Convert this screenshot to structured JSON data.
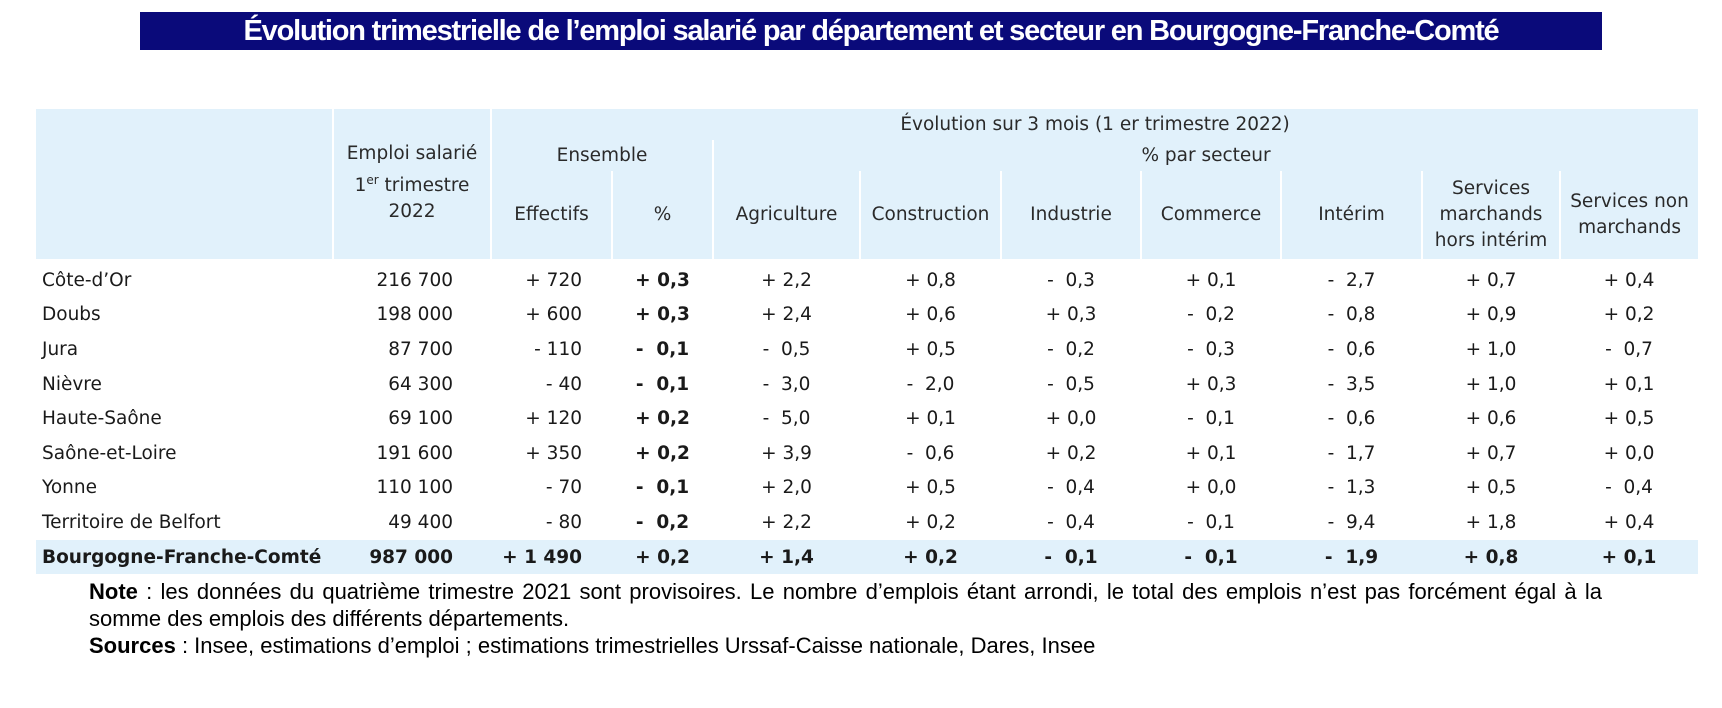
{
  "title": "Évolution trimestrielle de l’emploi salarié par département et secteur en Bourgogne-Franche-Comté",
  "table": {
    "header": {
      "evolution": "Évolution sur 3 mois (1 er trimestre 2022)",
      "emploi_line1": "Emploi salarié",
      "emploi_sup": "er",
      "emploi_line2_a": "1",
      "emploi_line2_b": " trimestre",
      "emploi_line3": "2022",
      "ensemble": "Ensemble",
      "par_secteur": "% par secteur",
      "effectifs": "Effectifs",
      "pct": "%",
      "agriculture": "Agriculture",
      "construction": "Construction",
      "industrie": "Industrie",
      "commerce": "Commerce",
      "interim": "Intérim",
      "services_marchands": "Services marchands hors intérim",
      "services_non_marchands": "Services non marchands"
    },
    "rows": [
      {
        "name": "Côte-d’Or",
        "emploi": "216 700",
        "effectifs": "+ 720",
        "pct": "+ 0,3",
        "agriculture": "+ 2,2",
        "construction": "+ 0,8",
        "industrie": "-  0,3",
        "commerce": "+ 0,1",
        "interim": "-  2,7",
        "services_marchands": "+ 0,7",
        "services_non_marchands": "+ 0,4"
      },
      {
        "name": "Doubs",
        "emploi": "198 000",
        "effectifs": "+ 600",
        "pct": "+ 0,3",
        "agriculture": "+ 2,4",
        "construction": "+ 0,6",
        "industrie": "+ 0,3",
        "commerce": "-  0,2",
        "interim": "-  0,8",
        "services_marchands": "+ 0,9",
        "services_non_marchands": "+ 0,2"
      },
      {
        "name": "Jura",
        "emploi": "87 700",
        "effectifs": "- 110",
        "pct": "-  0,1",
        "agriculture": "-  0,5",
        "construction": "+ 0,5",
        "industrie": "-  0,2",
        "commerce": "-  0,3",
        "interim": "-  0,6",
        "services_marchands": "+ 1,0",
        "services_non_marchands": "-  0,7"
      },
      {
        "name": "Nièvre",
        "emploi": "64 300",
        "effectifs": "- 40",
        "pct": "-  0,1",
        "agriculture": "-  3,0",
        "construction": "-  2,0",
        "industrie": "-  0,5",
        "commerce": "+ 0,3",
        "interim": "-  3,5",
        "services_marchands": "+ 1,0",
        "services_non_marchands": "+ 0,1"
      },
      {
        "name": "Haute-Saône",
        "emploi": "69 100",
        "effectifs": "+ 120",
        "pct": "+ 0,2",
        "agriculture": "-  5,0",
        "construction": "+ 0,1",
        "industrie": "+ 0,0",
        "commerce": "-  0,1",
        "interim": "-  0,6",
        "services_marchands": "+ 0,6",
        "services_non_marchands": "+ 0,5"
      },
      {
        "name": "Saône-et-Loire",
        "emploi": "191 600",
        "effectifs": "+ 350",
        "pct": "+ 0,2",
        "agriculture": "+ 3,9",
        "construction": "-  0,6",
        "industrie": "+ 0,2",
        "commerce": "+ 0,1",
        "interim": "-  1,7",
        "services_marchands": "+ 0,7",
        "services_non_marchands": "+ 0,0"
      },
      {
        "name": "Yonne",
        "emploi": "110 100",
        "effectifs": "- 70",
        "pct": "-  0,1",
        "agriculture": "+ 2,0",
        "construction": "+ 0,5",
        "industrie": "-  0,4",
        "commerce": "+ 0,0",
        "interim": "-  1,3",
        "services_marchands": "+ 0,5",
        "services_non_marchands": "-  0,4"
      },
      {
        "name": "Territoire de Belfort",
        "emploi": "49 400",
        "effectifs": "- 80",
        "pct": "-  0,2",
        "agriculture": "+ 2,2",
        "construction": "+ 0,2",
        "industrie": "-  0,4",
        "commerce": "-  0,1",
        "interim": "-  9,4",
        "services_marchands": "+ 1,8",
        "services_non_marchands": "+ 0,4"
      }
    ],
    "total": {
      "name": "Bourgogne-Franche-Comté",
      "emploi": "987 000",
      "effectifs": "+ 1 490",
      "pct": "+ 0,2",
      "agriculture": "+ 1,4",
      "construction": "+ 0,2",
      "industrie": "-  0,1",
      "commerce": "-  0,1",
      "interim": "-  1,9",
      "services_marchands": "+ 0,8",
      "services_non_marchands": "+ 0,1"
    }
  },
  "note": {
    "note_label": "Note",
    "note_text": " : les données du quatrième trimestre 2021 sont provisoires. Le nombre d’emplois étant arrondi, le total des emplois n’est pas forcément égal à la somme des emplois des différents départements.",
    "sources_label": "Sources",
    "sources_text": " : Insee, estimations d’emploi ; estimations trimestrielles Urssaf-Caisse nationale, Dares, Insee"
  }
}
